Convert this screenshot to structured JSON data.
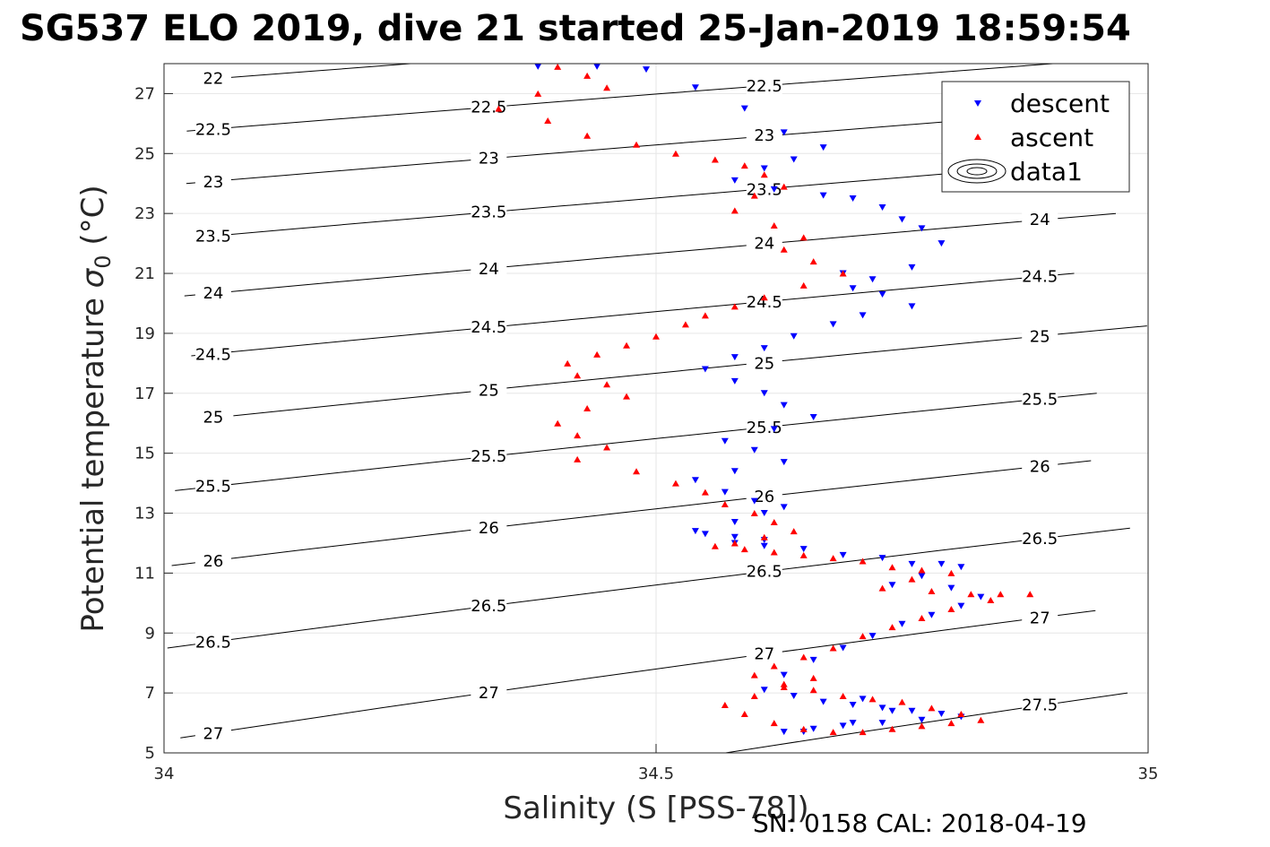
{
  "chart_data": {
    "type": "scatter",
    "title": "SG537 ELO 2019, dive 21 started 25-Jan-2019 18:59:54",
    "xlabel": "Salinity (S [PSS-78])",
    "ylabel": "Potential temperature σ₀ (°C)",
    "ylabel_main": "Potential temperature ",
    "ylabel_sigma": "σ",
    "ylabel_sub": "0",
    "ylabel_unit": " (°C)",
    "footer": "SN: 0158  CAL: 2018-04-19",
    "xlim": [
      34,
      35
    ],
    "ylim": [
      5,
      28
    ],
    "xticks": [
      34,
      34.5,
      35
    ],
    "xtick_labels": [
      "34",
      "34.5",
      "35"
    ],
    "yticks": [
      5,
      7,
      9,
      11,
      13,
      15,
      17,
      19,
      21,
      23,
      25,
      27
    ],
    "ytick_labels": [
      "5",
      "7",
      "9",
      "11",
      "13",
      "15",
      "17",
      "19",
      "21",
      "23",
      "25",
      "27"
    ],
    "grid": true,
    "legend_position": "top-right",
    "legend": [
      "descent",
      "ascent",
      "data1"
    ],
    "colors": {
      "descent": "#0000ff",
      "ascent": "#ff0000",
      "contour": "#000000",
      "grid": "#e6e6e6"
    },
    "contours": [
      {
        "level": 22,
        "label": "22"
      },
      {
        "level": 22.5,
        "label": "22.5"
      },
      {
        "level": 23,
        "label": "23"
      },
      {
        "level": 23.5,
        "label": "23.5"
      },
      {
        "level": 24,
        "label": "24"
      },
      {
        "level": 24.5,
        "label": "24.5"
      },
      {
        "level": 25,
        "label": "25"
      },
      {
        "level": 25.5,
        "label": "25.5"
      },
      {
        "level": 26,
        "label": "26"
      },
      {
        "level": 26.5,
        "label": "26.5"
      },
      {
        "level": 27,
        "label": "27"
      },
      {
        "level": 27.5,
        "label": "27.5"
      }
    ],
    "series": [
      {
        "name": "descent",
        "marker": "triangle-down",
        "x": [
          34.38,
          34.44,
          34.49,
          34.54,
          34.59,
          34.63,
          34.67,
          34.64,
          34.61,
          34.58,
          34.62,
          34.67,
          34.7,
          34.73,
          34.75,
          34.77,
          34.79,
          34.76,
          34.72,
          34.69,
          34.7,
          34.73,
          34.76,
          34.71,
          34.68,
          34.64,
          34.61,
          34.58,
          34.55,
          34.58,
          34.61,
          34.63,
          34.66,
          34.62,
          34.57,
          34.6,
          34.63,
          34.58,
          34.54,
          34.57,
          34.6,
          34.63,
          34.61,
          34.58,
          34.55,
          34.54,
          34.58,
          34.61,
          34.58,
          34.61,
          34.65,
          34.69,
          34.73,
          34.76,
          34.79,
          34.81,
          34.77,
          34.74,
          34.8,
          34.83,
          34.81,
          34.78,
          34.75,
          34.72,
          34.69,
          34.66,
          34.63,
          34.61,
          34.64,
          34.67,
          34.7,
          34.73,
          34.76,
          34.79,
          34.81,
          34.77,
          34.73,
          34.69,
          34.66,
          34.63,
          34.65,
          34.7,
          34.74,
          34.71
        ],
        "y": [
          27.9,
          27.9,
          27.8,
          27.2,
          26.5,
          25.7,
          25.2,
          24.8,
          24.5,
          24.1,
          23.8,
          23.6,
          23.5,
          23.2,
          22.8,
          22.5,
          22.0,
          21.2,
          20.8,
          21.0,
          20.5,
          20.3,
          19.9,
          19.6,
          19.3,
          18.9,
          18.5,
          18.2,
          17.8,
          17.4,
          17.0,
          16.6,
          16.2,
          15.8,
          15.4,
          15.1,
          14.7,
          14.4,
          14.1,
          13.7,
          13.4,
          13.2,
          13.0,
          12.7,
          12.3,
          12.4,
          12.2,
          12.1,
          12.0,
          11.9,
          11.8,
          11.6,
          11.5,
          11.3,
          11.3,
          11.2,
          10.9,
          10.6,
          10.5,
          10.2,
          9.9,
          9.6,
          9.3,
          8.9,
          8.5,
          8.1,
          7.6,
          7.1,
          6.9,
          6.7,
          6.6,
          6.5,
          6.4,
          6.3,
          6.2,
          6.1,
          6.0,
          5.9,
          5.8,
          5.7,
          5.7,
          6.0,
          6.4,
          6.8
        ]
      },
      {
        "name": "ascent",
        "marker": "triangle-up",
        "x": [
          34.4,
          34.43,
          34.45,
          34.38,
          34.34,
          34.39,
          34.43,
          34.48,
          34.52,
          34.56,
          34.59,
          34.61,
          34.63,
          34.6,
          34.58,
          34.62,
          34.65,
          34.63,
          34.66,
          34.69,
          34.65,
          34.61,
          34.58,
          34.55,
          34.53,
          34.5,
          34.47,
          34.44,
          34.41,
          34.42,
          34.45,
          34.47,
          34.43,
          34.4,
          34.42,
          34.45,
          34.42,
          34.48,
          34.52,
          34.55,
          34.57,
          34.6,
          34.62,
          34.64,
          34.61,
          34.58,
          34.56,
          34.59,
          34.62,
          34.65,
          34.68,
          34.71,
          34.74,
          34.77,
          34.8,
          34.76,
          34.73,
          34.78,
          34.82,
          34.85,
          34.88,
          34.84,
          34.8,
          34.77,
          34.74,
          34.71,
          34.68,
          34.65,
          34.62,
          34.6,
          34.63,
          34.66,
          34.69,
          34.72,
          34.75,
          34.78,
          34.81,
          34.83,
          34.8,
          34.77,
          34.74,
          34.71,
          34.68,
          34.65,
          34.62,
          34.59,
          34.57,
          34.6,
          34.63,
          34.66
        ],
        "y": [
          27.9,
          27.6,
          27.2,
          27.0,
          26.5,
          26.1,
          25.6,
          25.3,
          25.0,
          24.8,
          24.6,
          24.3,
          23.9,
          23.6,
          23.1,
          22.6,
          22.2,
          21.8,
          21.4,
          21.0,
          20.6,
          20.2,
          19.9,
          19.6,
          19.3,
          18.9,
          18.6,
          18.3,
          18.0,
          17.6,
          17.3,
          16.9,
          16.5,
          16.0,
          15.6,
          15.2,
          14.8,
          14.4,
          14.0,
          13.7,
          13.3,
          13.0,
          12.7,
          12.4,
          12.2,
          12.0,
          11.9,
          11.8,
          11.7,
          11.6,
          11.5,
          11.4,
          11.2,
          11.1,
          11.0,
          10.8,
          10.5,
          10.4,
          10.3,
          10.3,
          10.3,
          10.1,
          9.8,
          9.5,
          9.2,
          8.9,
          8.5,
          8.2,
          7.9,
          7.6,
          7.3,
          7.1,
          6.9,
          6.8,
          6.7,
          6.5,
          6.3,
          6.1,
          6.0,
          5.9,
          5.8,
          5.7,
          5.7,
          5.8,
          6.0,
          6.3,
          6.6,
          6.9,
          7.2,
          7.5
        ]
      }
    ]
  }
}
